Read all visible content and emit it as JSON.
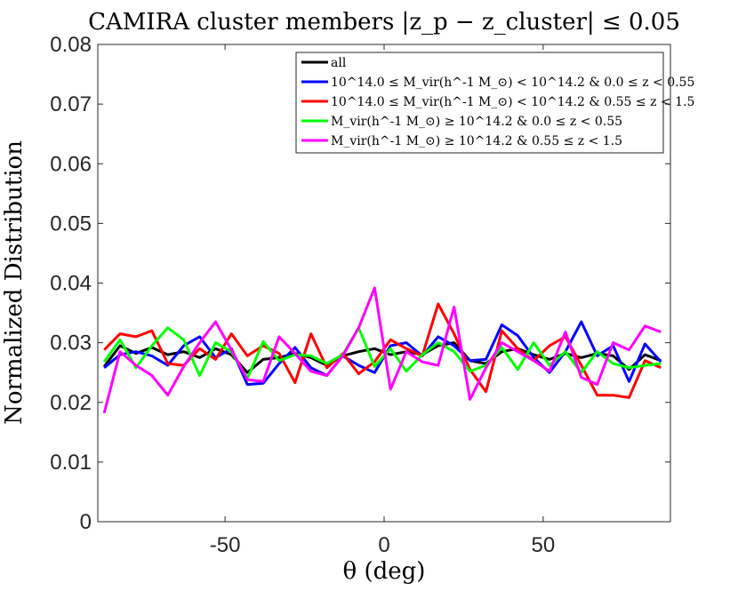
{
  "chart_data": {
    "type": "line",
    "title": "CAMIRA cluster members |z_p − z_cluster| ≤ 0.05",
    "xlabel": "θ (deg)",
    "ylabel": "Normalized Distribution",
    "xlim": [
      -90,
      90
    ],
    "ylim": [
      0,
      0.08
    ],
    "xticks": [
      -50,
      0,
      50
    ],
    "xtick_labels": [
      "-50",
      "0",
      "50"
    ],
    "yticks": [
      0,
      0.01,
      0.02,
      0.03,
      0.04,
      0.05,
      0.06,
      0.07,
      0.08
    ],
    "ytick_labels": [
      "0",
      "0.01",
      "0.02",
      "0.03",
      "0.04",
      "0.05",
      "0.06",
      "0.07",
      "0.08"
    ],
    "grid": false,
    "legend_position": "top-right",
    "x": [
      -88,
      -83,
      -78,
      -73,
      -68,
      -63,
      -58,
      -53,
      -48,
      -43,
      -38,
      -33,
      -28,
      -23,
      -18,
      -13,
      -8,
      -3,
      2,
      7,
      12,
      17,
      22,
      27,
      32,
      37,
      42,
      47,
      52,
      57,
      62,
      67,
      72,
      77,
      82,
      87
    ],
    "series": [
      {
        "name": "all",
        "color": "#000000",
        "values": [
          0.026,
          0.0295,
          0.0282,
          0.0292,
          0.028,
          0.0285,
          0.0275,
          0.029,
          0.028,
          0.025,
          0.0272,
          0.0275,
          0.0282,
          0.0275,
          0.0262,
          0.0278,
          0.0285,
          0.029,
          0.028,
          0.0285,
          0.028,
          0.0295,
          0.03,
          0.027,
          0.0265,
          0.0285,
          0.029,
          0.028,
          0.0272,
          0.0282,
          0.0275,
          0.0282,
          0.0278,
          0.0255,
          0.028,
          0.027
        ]
      },
      {
        "name": "10^14.0 ≤ M_vir(h^-1 M_⊙) < 10^14.2 & 0.0 ≤ z < 0.55",
        "color": "#0000ff",
        "values": [
          0.0258,
          0.028,
          0.0285,
          0.0278,
          0.0262,
          0.0295,
          0.031,
          0.0275,
          0.029,
          0.023,
          0.0232,
          0.0265,
          0.0292,
          0.0258,
          0.0245,
          0.0278,
          0.0262,
          0.025,
          0.0295,
          0.03,
          0.0278,
          0.031,
          0.0295,
          0.027,
          0.0272,
          0.033,
          0.0312,
          0.0275,
          0.025,
          0.0285,
          0.0335,
          0.0278,
          0.0295,
          0.0235,
          0.0298,
          0.0268
        ]
      },
      {
        "name": "10^14.0 ≤ M_vir(h^-1 M_⊙) < 10^14.2 & 0.55 ≤ z < 1.5",
        "color": "#ff0000",
        "values": [
          0.0288,
          0.0315,
          0.031,
          0.032,
          0.0265,
          0.0262,
          0.029,
          0.0272,
          0.0315,
          0.0278,
          0.0295,
          0.0282,
          0.0233,
          0.0315,
          0.0258,
          0.0282,
          0.0248,
          0.0268,
          0.0305,
          0.029,
          0.0278,
          0.0365,
          0.0315,
          0.0255,
          0.0218,
          0.032,
          0.029,
          0.027,
          0.0295,
          0.031,
          0.0262,
          0.0212,
          0.0212,
          0.0208,
          0.027,
          0.0258
        ]
      },
      {
        "name": "M_vir(h^-1 M_⊙) ≥ 10^14.2 & 0.0 ≤ z < 0.55",
        "color": "#00ff00",
        "values": [
          0.0268,
          0.0305,
          0.0258,
          0.0295,
          0.0325,
          0.0305,
          0.0245,
          0.03,
          0.0285,
          0.024,
          0.0302,
          0.027,
          0.028,
          0.0278,
          0.0265,
          0.028,
          0.0325,
          0.026,
          0.029,
          0.0252,
          0.028,
          0.03,
          0.0285,
          0.0252,
          0.0262,
          0.0292,
          0.0255,
          0.03,
          0.0262,
          0.0285,
          0.025,
          0.0285,
          0.0265,
          0.0258,
          0.0262,
          0.0265
        ]
      },
      {
        "name": "M_vir(h^-1 M_⊙) ≥ 10^14.2 & 0.55 ≤ z < 1.5",
        "color": "#ff00ff",
        "values": [
          0.0182,
          0.0285,
          0.0262,
          0.0245,
          0.0212,
          0.026,
          0.03,
          0.0335,
          0.0288,
          0.0238,
          0.0235,
          0.031,
          0.0282,
          0.0252,
          0.0245,
          0.0278,
          0.0325,
          0.0392,
          0.0222,
          0.0285,
          0.0268,
          0.0262,
          0.036,
          0.0205,
          0.0258,
          0.03,
          0.0285,
          0.027,
          0.0252,
          0.0318,
          0.0242,
          0.023,
          0.03,
          0.0288,
          0.0328,
          0.0318
        ]
      }
    ]
  }
}
